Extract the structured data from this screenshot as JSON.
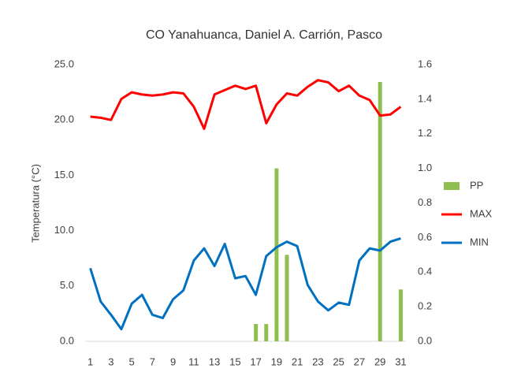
{
  "chart_data": {
    "type": "bar",
    "title": "CO Yanahuanca, Daniel A. Carrión, Pasco",
    "y_label": "Temperatura (°C)",
    "categories": [
      1,
      null,
      3,
      null,
      5,
      null,
      7,
      null,
      9,
      null,
      11,
      null,
      13,
      null,
      15,
      null,
      17,
      null,
      19,
      null,
      21,
      null,
      23,
      null,
      25,
      null,
      27,
      null,
      29,
      null,
      31
    ],
    "ylim": [
      0,
      25
    ],
    "yticks": [
      {
        "value": 0,
        "label": "0.0"
      },
      {
        "value": 5,
        "label": "5.0"
      },
      {
        "value": 10,
        "label": "10.0"
      },
      {
        "value": 15,
        "label": "15.0"
      },
      {
        "value": 20,
        "label": "20.0"
      },
      {
        "value": 25,
        "label": "25.0"
      }
    ],
    "y2lim": [
      0,
      1.6
    ],
    "y2ticks": [
      {
        "value": 0,
        "label": "0.0"
      },
      0.2,
      0.4,
      0.6,
      0.8,
      {
        "value": 1,
        "label": "1.0"
      },
      1.2,
      1.4,
      1.6
    ],
    "grid": false,
    "legend": "right",
    "series": [
      {
        "name": "PP",
        "type": "bar",
        "axis": "y2",
        "color": "#8fbf4f",
        "values": [
          0,
          0,
          0,
          0,
          0,
          0,
          0,
          0,
          0,
          0,
          0,
          0,
          0,
          0,
          0,
          0,
          0.1,
          0.1,
          1.0,
          0.5,
          0,
          0,
          0,
          0,
          0,
          0,
          0,
          0,
          1.5,
          0,
          0.3
        ]
      },
      {
        "name": "MAX",
        "type": "line",
        "color": "#ff0000",
        "values": [
          20.3,
          20.2,
          20.0,
          21.9,
          22.5,
          22.3,
          22.2,
          22.3,
          22.5,
          22.4,
          21.2,
          19.2,
          22.3,
          22.7,
          23.1,
          22.8,
          23.1,
          19.7,
          21.4,
          22.4,
          22.2,
          23.0,
          23.6,
          23.4,
          22.6,
          23.1,
          22.2,
          21.8,
          20.4,
          20.5,
          21.2
        ]
      },
      {
        "name": "MIN",
        "type": "line",
        "color": "#0070c0",
        "values": [
          6.6,
          3.6,
          2.4,
          1.1,
          3.4,
          4.2,
          2.4,
          2.1,
          3.8,
          4.6,
          7.3,
          8.4,
          6.8,
          8.8,
          5.7,
          5.9,
          4.2,
          7.7,
          8.5,
          9.0,
          8.6,
          5.1,
          3.6,
          2.8,
          3.5,
          3.3,
          7.3,
          8.4,
          8.2,
          9.0,
          9.3
        ]
      }
    ]
  }
}
